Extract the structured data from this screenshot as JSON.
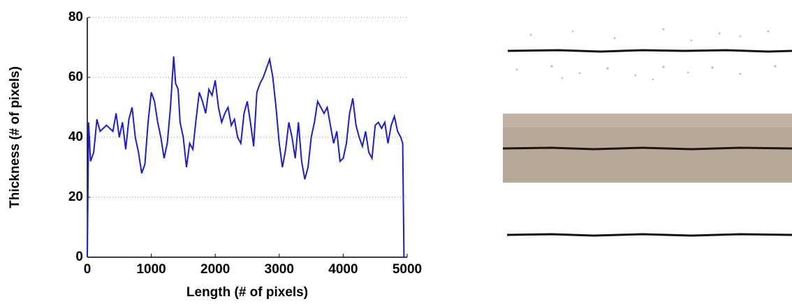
{
  "chart_data": {
    "type": "line",
    "x_label": "Length (# of pixels)",
    "y_label": "Thickness (# of pixels)",
    "series": [
      {
        "color": "#1c1cd0",
        "x": [
          0,
          20,
          50,
          100,
          150,
          200,
          300,
          400,
          450,
          500,
          550,
          600,
          650,
          700,
          750,
          800,
          850,
          900,
          950,
          1000,
          1050,
          1100,
          1150,
          1200,
          1250,
          1300,
          1350,
          1380,
          1420,
          1450,
          1500,
          1550,
          1600,
          1650,
          1700,
          1750,
          1800,
          1850,
          1900,
          1950,
          2000,
          2050,
          2100,
          2150,
          2200,
          2250,
          2300,
          2350,
          2400,
          2450,
          2500,
          2550,
          2600,
          2650,
          2700,
          2750,
          2800,
          2850,
          2900,
          2950,
          3000,
          3050,
          3100,
          3150,
          3200,
          3250,
          3300,
          3350,
          3400,
          3450,
          3500,
          3550,
          3600,
          3650,
          3700,
          3750,
          3800,
          3850,
          3900,
          3950,
          4000,
          4050,
          4100,
          4150,
          4200,
          4250,
          4300,
          4350,
          4400,
          4450,
          4500,
          4550,
          4600,
          4650,
          4700,
          4750,
          4800,
          4850,
          4900,
          4930,
          4950
        ],
        "values": [
          0,
          45,
          32,
          35,
          46,
          42,
          44,
          42,
          48,
          40,
          45,
          36,
          46,
          50,
          40,
          35,
          28,
          31,
          45,
          55,
          52,
          45,
          40,
          33,
          38,
          50,
          67,
          58,
          56,
          45,
          40,
          30,
          38,
          36,
          46,
          55,
          52,
          48,
          56,
          54,
          59,
          50,
          45,
          48,
          50,
          44,
          46,
          40,
          38,
          48,
          52,
          45,
          37,
          55,
          58,
          60,
          63,
          66,
          60,
          50,
          38,
          30,
          36,
          45,
          40,
          33,
          45,
          32,
          26,
          30,
          40,
          45,
          52,
          50,
          48,
          50,
          44,
          38,
          42,
          32,
          33,
          38,
          48,
          53,
          44,
          40,
          37,
          42,
          35,
          33,
          44,
          45,
          43,
          45,
          38,
          44,
          47,
          42,
          40,
          38,
          0
        ]
      }
    ],
    "xlim": [
      0,
      5000
    ],
    "xticks": [
      0,
      1000,
      2000,
      3000,
      4000,
      5000
    ],
    "ylim": [
      0,
      80
    ],
    "yticks": [
      0,
      20,
      40,
      60,
      80
    ],
    "grid": true
  }
}
